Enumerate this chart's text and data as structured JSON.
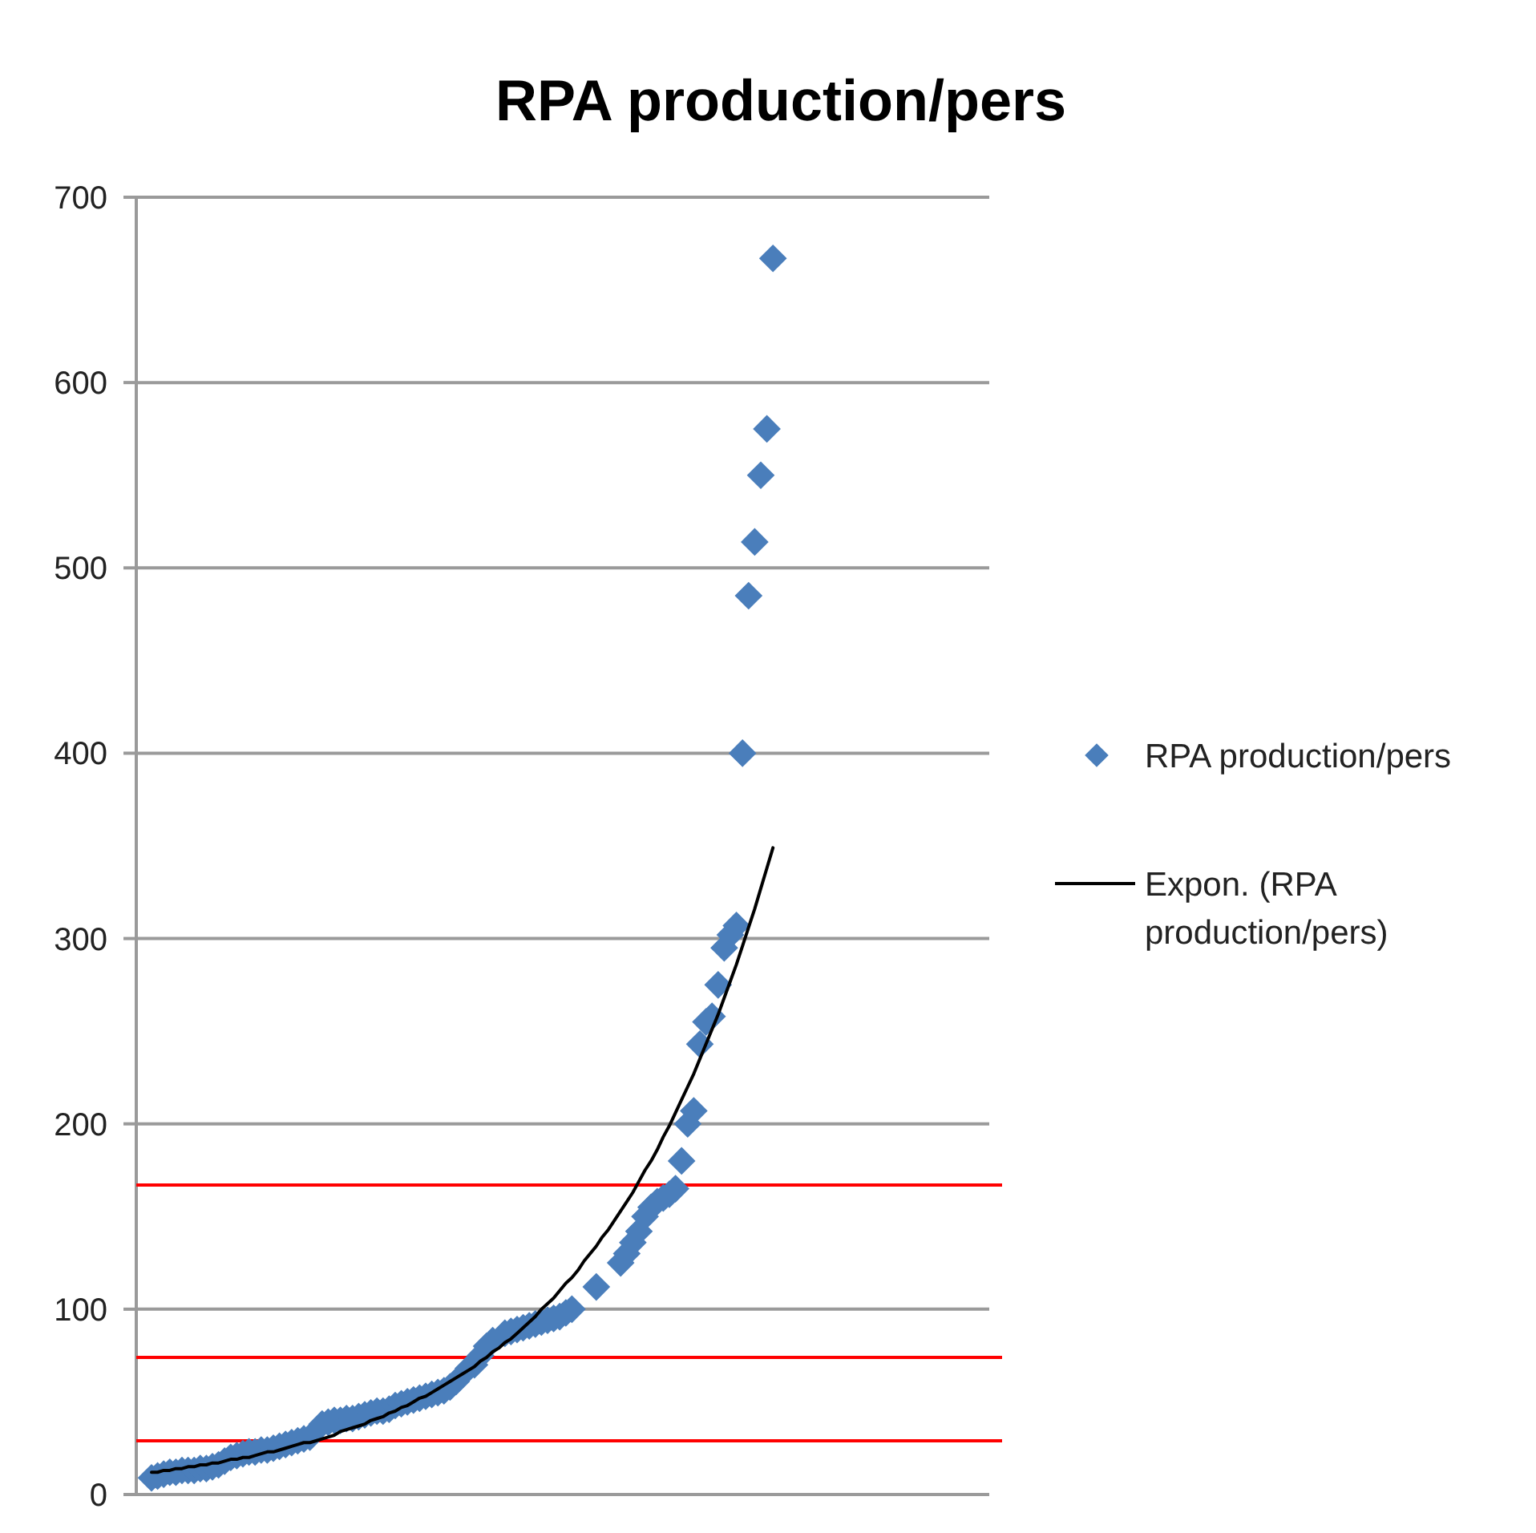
{
  "chart_data": {
    "type": "scatter",
    "title": "RPA production/pers",
    "categories": [
      null,
      null,
      null,
      null,
      null,
      null,
      null,
      null,
      null,
      null,
      null,
      null,
      null,
      null,
      null,
      null,
      null,
      null,
      null,
      null,
      null,
      null,
      null,
      null,
      null,
      null,
      null,
      null,
      null,
      null,
      null,
      null,
      null,
      null,
      null,
      null,
      null,
      null,
      null,
      null,
      null,
      null,
      null,
      null,
      null,
      null,
      null,
      null,
      null,
      null,
      null,
      null,
      null,
      null,
      null,
      null,
      null,
      null,
      null,
      null,
      null,
      null,
      null,
      null,
      null,
      null,
      null,
      null,
      null,
      null,
      null,
      null,
      null,
      null,
      null,
      null,
      null,
      null,
      null,
      null,
      null,
      null,
      null,
      null,
      null,
      null,
      null,
      null,
      null,
      null,
      null,
      null,
      null,
      null,
      null,
      null,
      null,
      null,
      null,
      null,
      null,
      null,
      null,
      null,
      null,
      null,
      null,
      null,
      null,
      null,
      null,
      null,
      null,
      null,
      null,
      null,
      null,
      null,
      null,
      null,
      null,
      null,
      null,
      null,
      null,
      null,
      null,
      null,
      null,
      null,
      null,
      null,
      null,
      null,
      null,
      null,
      null,
      null,
      null,
      null
    ],
    "series": [
      {
        "name": "RPA production/pers",
        "marker": "diamond",
        "color": "#4a7ebb",
        "values": [
          null,
          null,
          9,
          10,
          11,
          12,
          12,
          13,
          13,
          13,
          14,
          14,
          15,
          16,
          18,
          20,
          21,
          22,
          23,
          23,
          24,
          24,
          25,
          26,
          27,
          28,
          29,
          30,
          31,
          null,
          38,
          39,
          40,
          40,
          41,
          41,
          42,
          43,
          44,
          45,
          45,
          46,
          48,
          49,
          50,
          51,
          52,
          53,
          54,
          55,
          56,
          58,
          61,
          null,
          68,
          70,
          75,
          80,
          83,
          null,
          87,
          88,
          89,
          90,
          91,
          92,
          93,
          94,
          95,
          96,
          98,
          100,
          null,
          null,
          null,
          112,
          null,
          null,
          null,
          125,
          130,
          136,
          142,
          150,
          155,
          158,
          160,
          162,
          165,
          180,
          200,
          207,
          243,
          255,
          258,
          275,
          295,
          302,
          307,
          400,
          485,
          514,
          550,
          575,
          667,
          null,
          null,
          null,
          null,
          null,
          null,
          null,
          null,
          null,
          null,
          null,
          null,
          null,
          null,
          null,
          null,
          null,
          null,
          null,
          null,
          null,
          null,
          null,
          null,
          null,
          null,
          null,
          null,
          null,
          null,
          null,
          null,
          null,
          null,
          null
        ]
      },
      {
        "name": "Expon. (RPA production/pers)",
        "type": "line",
        "color": "#000000",
        "values": [
          null,
          null,
          12,
          12,
          13,
          13,
          14,
          14,
          15,
          15,
          16,
          16,
          17,
          17,
          18,
          19,
          19,
          20,
          20,
          21,
          22,
          23,
          23,
          24,
          25,
          26,
          27,
          28,
          28,
          29,
          30,
          31,
          32,
          34,
          35,
          36,
          37,
          38,
          40,
          41,
          42,
          44,
          45,
          47,
          48,
          50,
          52,
          53,
          55,
          57,
          59,
          61,
          63,
          65,
          67,
          69,
          72,
          74,
          77,
          79,
          82,
          84,
          87,
          90,
          93,
          96,
          100,
          103,
          106,
          110,
          114,
          117,
          121,
          126,
          130,
          134,
          139,
          143,
          148,
          153,
          158,
          163,
          169,
          175,
          180,
          186,
          193,
          199,
          206,
          213,
          220,
          227,
          235,
          243,
          251,
          259,
          268,
          277,
          286,
          296,
          306,
          316,
          327,
          338,
          349,
          null,
          null,
          null,
          null,
          null,
          null,
          null,
          null,
          null,
          null,
          null,
          null,
          null,
          null,
          null,
          null,
          null,
          null,
          null,
          null,
          null,
          null,
          null,
          null,
          null,
          null,
          null,
          null,
          null,
          null,
          null,
          null,
          null,
          null,
          null
        ]
      }
    ],
    "ylim": [
      0,
      700
    ],
    "yticks": [
      0,
      100,
      200,
      300,
      400,
      500,
      600,
      700
    ],
    "grid": "y",
    "legend": "right",
    "tick_labels": "y",
    "ref_lines": [
      {
        "axis": "y",
        "value": 167,
        "color": "#ff0000"
      },
      {
        "axis": "y",
        "value": 74,
        "color": "#ff0000"
      },
      {
        "axis": "y",
        "value": 29,
        "color": "#ff0000"
      }
    ]
  }
}
